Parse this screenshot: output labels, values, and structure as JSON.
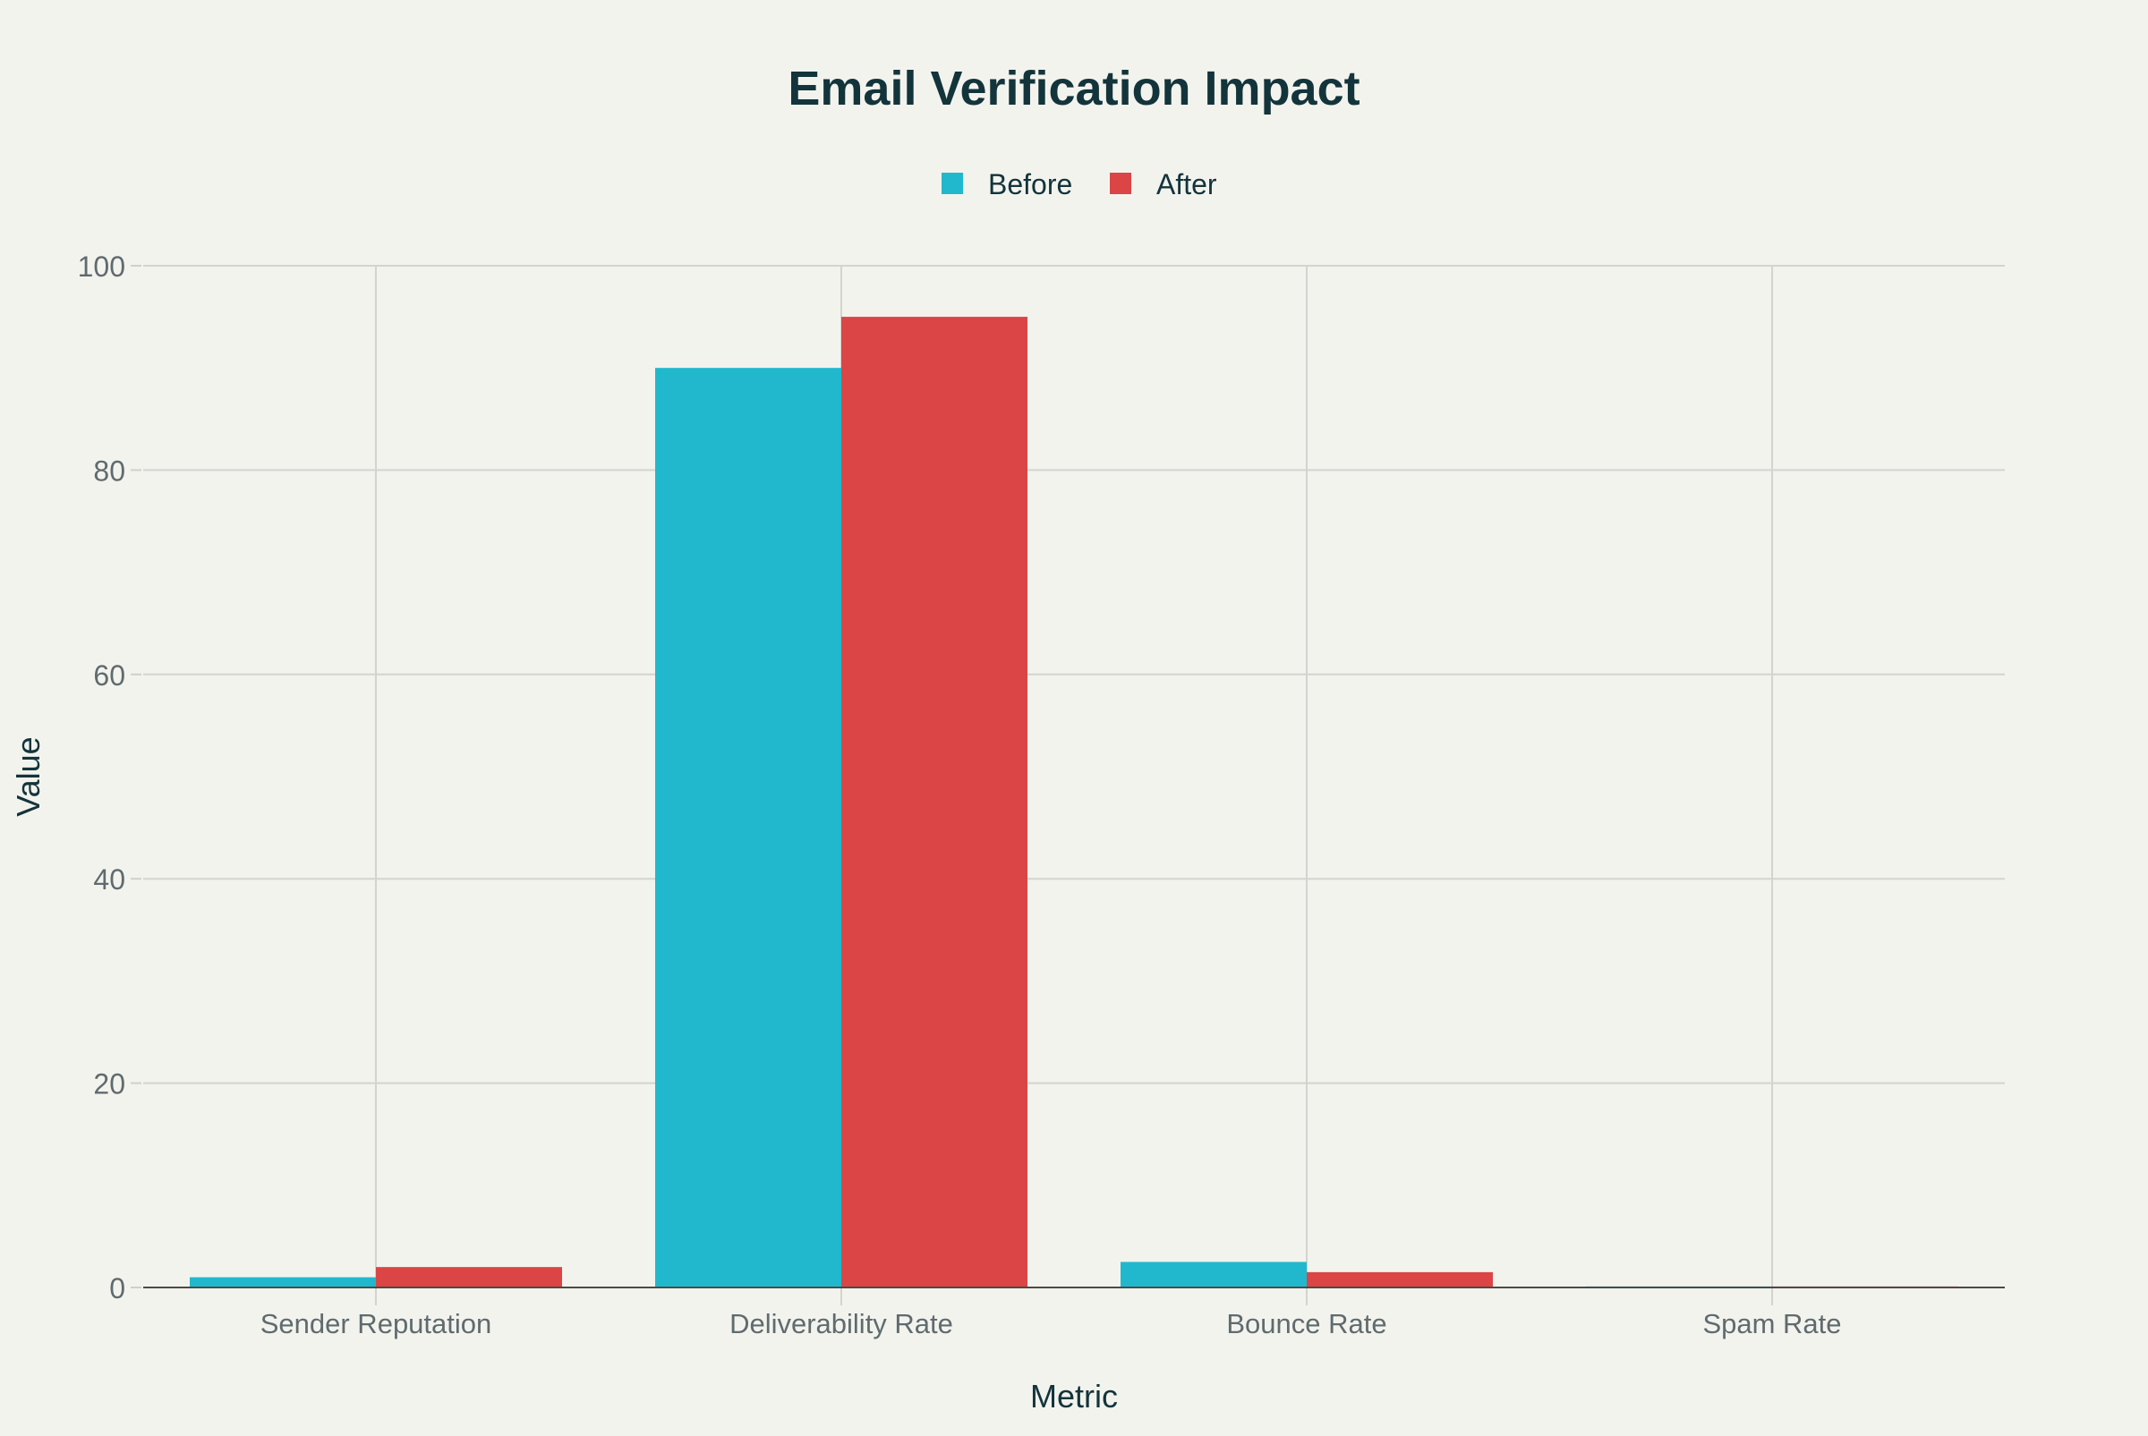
{
  "chart_data": {
    "type": "bar",
    "title": "Email Verification Impact",
    "xlabel": "Metric",
    "ylabel": "Value",
    "categories": [
      "Sender Reputation",
      "Deliverability Rate",
      "Bounce Rate",
      "Spam Rate"
    ],
    "series": [
      {
        "name": "Before",
        "values": [
          1.0,
          90,
          2.5,
          0.1
        ],
        "color": "#21b8cd"
      },
      {
        "name": "After",
        "values": [
          2.0,
          95,
          1.5,
          0.1
        ],
        "color": "#db4545"
      }
    ],
    "ylim": [
      0,
      100
    ],
    "yticks": [
      "0",
      "20",
      "40",
      "60",
      "80",
      "100"
    ],
    "grid": true,
    "legend": "top-center"
  }
}
